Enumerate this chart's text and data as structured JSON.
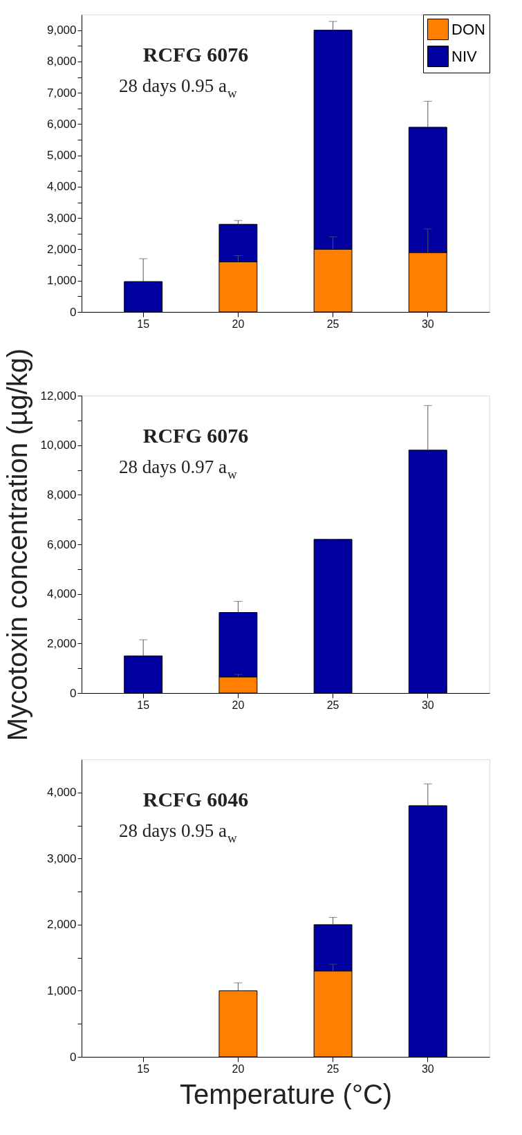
{
  "chart_data": [
    {
      "type": "bar",
      "stacked": true,
      "title": "RCFG 6076",
      "subtitle": "28 days 0.95 a$_{w}$",
      "categories": [
        "15",
        "20",
        "25",
        "30"
      ],
      "series": [
        {
          "name": "DON",
          "color": "#ff8000",
          "values": [
            null,
            1600,
            2000,
            1900
          ],
          "errors": [
            null,
            [
              1600,
              1800
            ],
            [
              2000,
              2400
            ],
            [
              1900,
              2650
            ]
          ]
        },
        {
          "name": "NIV",
          "color": "#0000a0",
          "values": [
            970,
            1200,
            7000,
            4000
          ],
          "errors": [
            [
              970,
              1700
            ],
            [
              2800,
              2920
            ],
            [
              9000,
              9280
            ],
            [
              5900,
              6730
            ]
          ]
        }
      ],
      "ylim": [
        0,
        9500
      ],
      "yticks": [
        0,
        {
          "value": 500,
          "label": null
        },
        {
          "value": 1000,
          "label": "1,000"
        },
        {
          "value": 1500,
          "label": null
        },
        {
          "value": 2000,
          "label": "2,000"
        },
        {
          "value": 2500,
          "label": null
        },
        {
          "value": 3000,
          "label": "3,000"
        },
        {
          "value": 3500,
          "label": null
        },
        {
          "value": 4000,
          "label": "4,000"
        },
        {
          "value": 4500,
          "label": null
        },
        {
          "value": 5000,
          "label": "5,000"
        },
        {
          "value": 5500,
          "label": null
        },
        {
          "value": 6000,
          "label": "6,000"
        },
        {
          "value": 6500,
          "label": null
        },
        {
          "value": 7000,
          "label": "7,000"
        },
        {
          "value": 7500,
          "label": null
        },
        {
          "value": 8000,
          "label": "8,000"
        },
        {
          "value": 8500,
          "label": null
        },
        {
          "value": 9000,
          "label": "9,000"
        }
      ],
      "legend": "top right",
      "grid": false
    },
    {
      "type": "bar",
      "stacked": true,
      "title": "RCFG 6076",
      "subtitle": "28 days 0.97 a$_{w}$",
      "categories": [
        "15",
        "20",
        "25",
        "30"
      ],
      "ylabel": "Mycotoxin concentration (µg/kg)",
      "series": [
        {
          "color": "#ff8000",
          "values": [
            null,
            650,
            null,
            null
          ],
          "errors": [
            null,
            [
              650,
              750
            ],
            null,
            null
          ]
        },
        {
          "color": "#0000a0",
          "values": [
            1500,
            2600,
            6200,
            9800
          ],
          "errors": [
            [
              1500,
              2150
            ],
            [
              3250,
              3700
            ],
            [
              6200,
              6210
            ],
            [
              9800,
              11600
            ]
          ]
        }
      ],
      "ylim": [
        0,
        12000
      ],
      "yticks": [
        0,
        {
          "value": 1000,
          "label": null
        },
        {
          "value": 2000,
          "label": "2,000"
        },
        {
          "value": 3000,
          "label": null
        },
        {
          "value": 4000,
          "label": "4,000"
        },
        {
          "value": 5000,
          "label": null
        },
        {
          "value": 6000,
          "label": "6,000"
        },
        {
          "value": 7000,
          "label": null
        },
        {
          "value": 8000,
          "label": "8,000"
        },
        {
          "value": 9000,
          "label": null
        },
        {
          "value": 10000,
          "label": "10,000"
        },
        {
          "value": 11000,
          "label": null
        },
        {
          "value": 12000,
          "label": "12,000"
        }
      ],
      "grid": false
    },
    {
      "type": "bar",
      "stacked": true,
      "title": "RCFG 6046",
      "subtitle": "28 days 0.95 a$_{w}$",
      "categories": [
        "15",
        "20",
        "25",
        "30"
      ],
      "xlabel": "Temperature (°C)",
      "series": [
        {
          "color": "#ff8000",
          "values": [
            null,
            1000,
            1300,
            null
          ],
          "errors": [
            null,
            [
              1000,
              1120
            ],
            [
              1300,
              1400
            ],
            null
          ]
        },
        {
          "color": "#0000a0",
          "values": [
            null,
            null,
            700,
            3800
          ],
          "errors": [
            null,
            null,
            [
              2000,
              2110
            ],
            [
              3800,
              4130
            ]
          ]
        }
      ],
      "ylim": [
        0,
        4500
      ],
      "yticks": [
        0,
        {
          "value": 500,
          "label": null
        },
        {
          "value": 1000,
          "label": "1,000"
        },
        {
          "value": 1500,
          "label": null
        },
        {
          "value": 2000,
          "label": "2,000"
        },
        {
          "value": 2500,
          "label": null
        },
        {
          "value": 3000,
          "label": "3,000"
        },
        {
          "value": 3500,
          "label": null
        },
        {
          "value": 4000,
          "label": "4,000"
        }
      ],
      "grid": false
    }
  ]
}
